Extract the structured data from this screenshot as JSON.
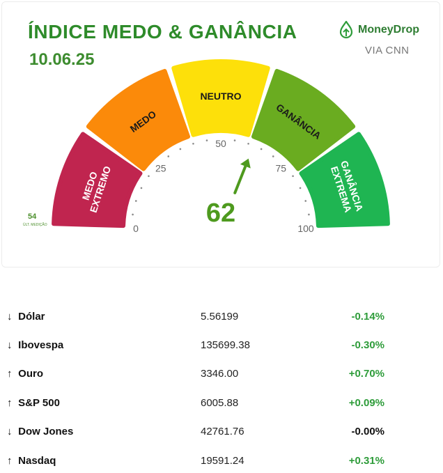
{
  "header": {
    "title": "ÍNDICE MEDO & GANÂNCIA",
    "date": "10.06.25",
    "brand": "MoneyDrop",
    "via": "VIA CNN"
  },
  "gauge": {
    "value": 62,
    "value_label": "62",
    "min": 0,
    "max": 100,
    "ticks": [
      "0",
      "25",
      "50",
      "75",
      "100"
    ],
    "segments": [
      {
        "label": "MEDO EXTREMO",
        "color": "#c0254f"
      },
      {
        "label": "MEDO",
        "color": "#fb8a0a"
      },
      {
        "label": "NEUTRO",
        "color": "#fde00a"
      },
      {
        "label": "GANÂNCIA",
        "color": "#6aac20"
      },
      {
        "label": "GANÂNCIA EXTREMA",
        "color": "#1fb552"
      }
    ],
    "previous_value": "54",
    "previous_label": "ÚLT. MEDIÇÃO"
  },
  "markets": [
    {
      "arrow": "↓",
      "name": "Dólar",
      "value": "5.56199",
      "change": "-0.14%"
    },
    {
      "arrow": "↓",
      "name": "Ibovespa",
      "value": "135699.38",
      "change": "-0.30%"
    },
    {
      "arrow": "↑",
      "name": "Ouro",
      "value": "3346.00",
      "change": "+0.70%"
    },
    {
      "arrow": "↑",
      "name": "S&P 500",
      "value": "6005.88",
      "change": "+0.09%"
    },
    {
      "arrow": "↓",
      "name": "Dow Jones",
      "value": "42761.76",
      "change": "-0.00%"
    },
    {
      "arrow": "↑",
      "name": "Nasdaq",
      "value": "19591.24",
      "change": "+0.31%"
    }
  ]
}
